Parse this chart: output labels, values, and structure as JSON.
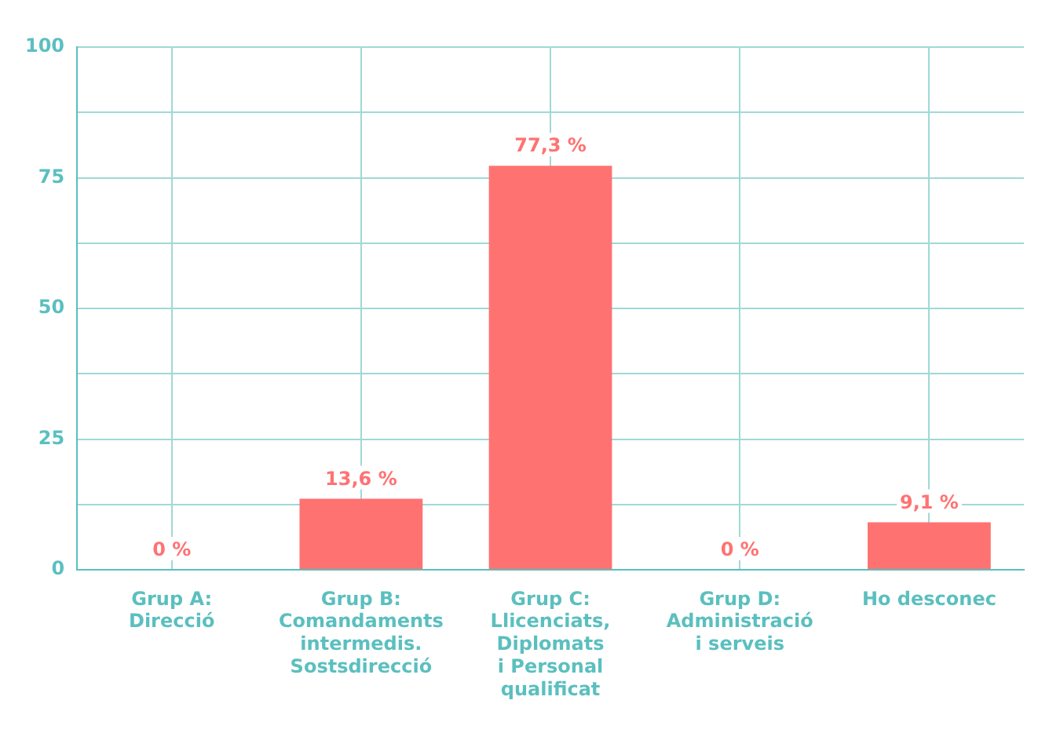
{
  "chart_data": {
    "type": "bar",
    "categories": [
      "Grup A:\nDirecció",
      "Grup B:\nComandaments\nintermedis.\nSostsdirecció",
      "Grup C:\nLlicenciats,\nDiplomats\ni Personal\nqualificat",
      "Grup D:\nAdministració\ni serveis",
      "Ho desconec"
    ],
    "values": [
      0,
      13.6,
      77.3,
      0,
      9.1
    ],
    "value_labels": [
      "0 %",
      "13,6 %",
      "77,3 %",
      "0 %",
      "9,1 %"
    ],
    "color": "#ff7272",
    "ylim": [
      0,
      100
    ],
    "yticks": [
      0,
      {
        "value": 12.5,
        "label": null
      },
      25,
      {
        "value": 37.5,
        "label": null
      },
      50,
      {
        "value": 62.5,
        "label": null
      },
      75,
      {
        "value": 87.5,
        "label": null
      },
      100
    ],
    "grid": true
  }
}
